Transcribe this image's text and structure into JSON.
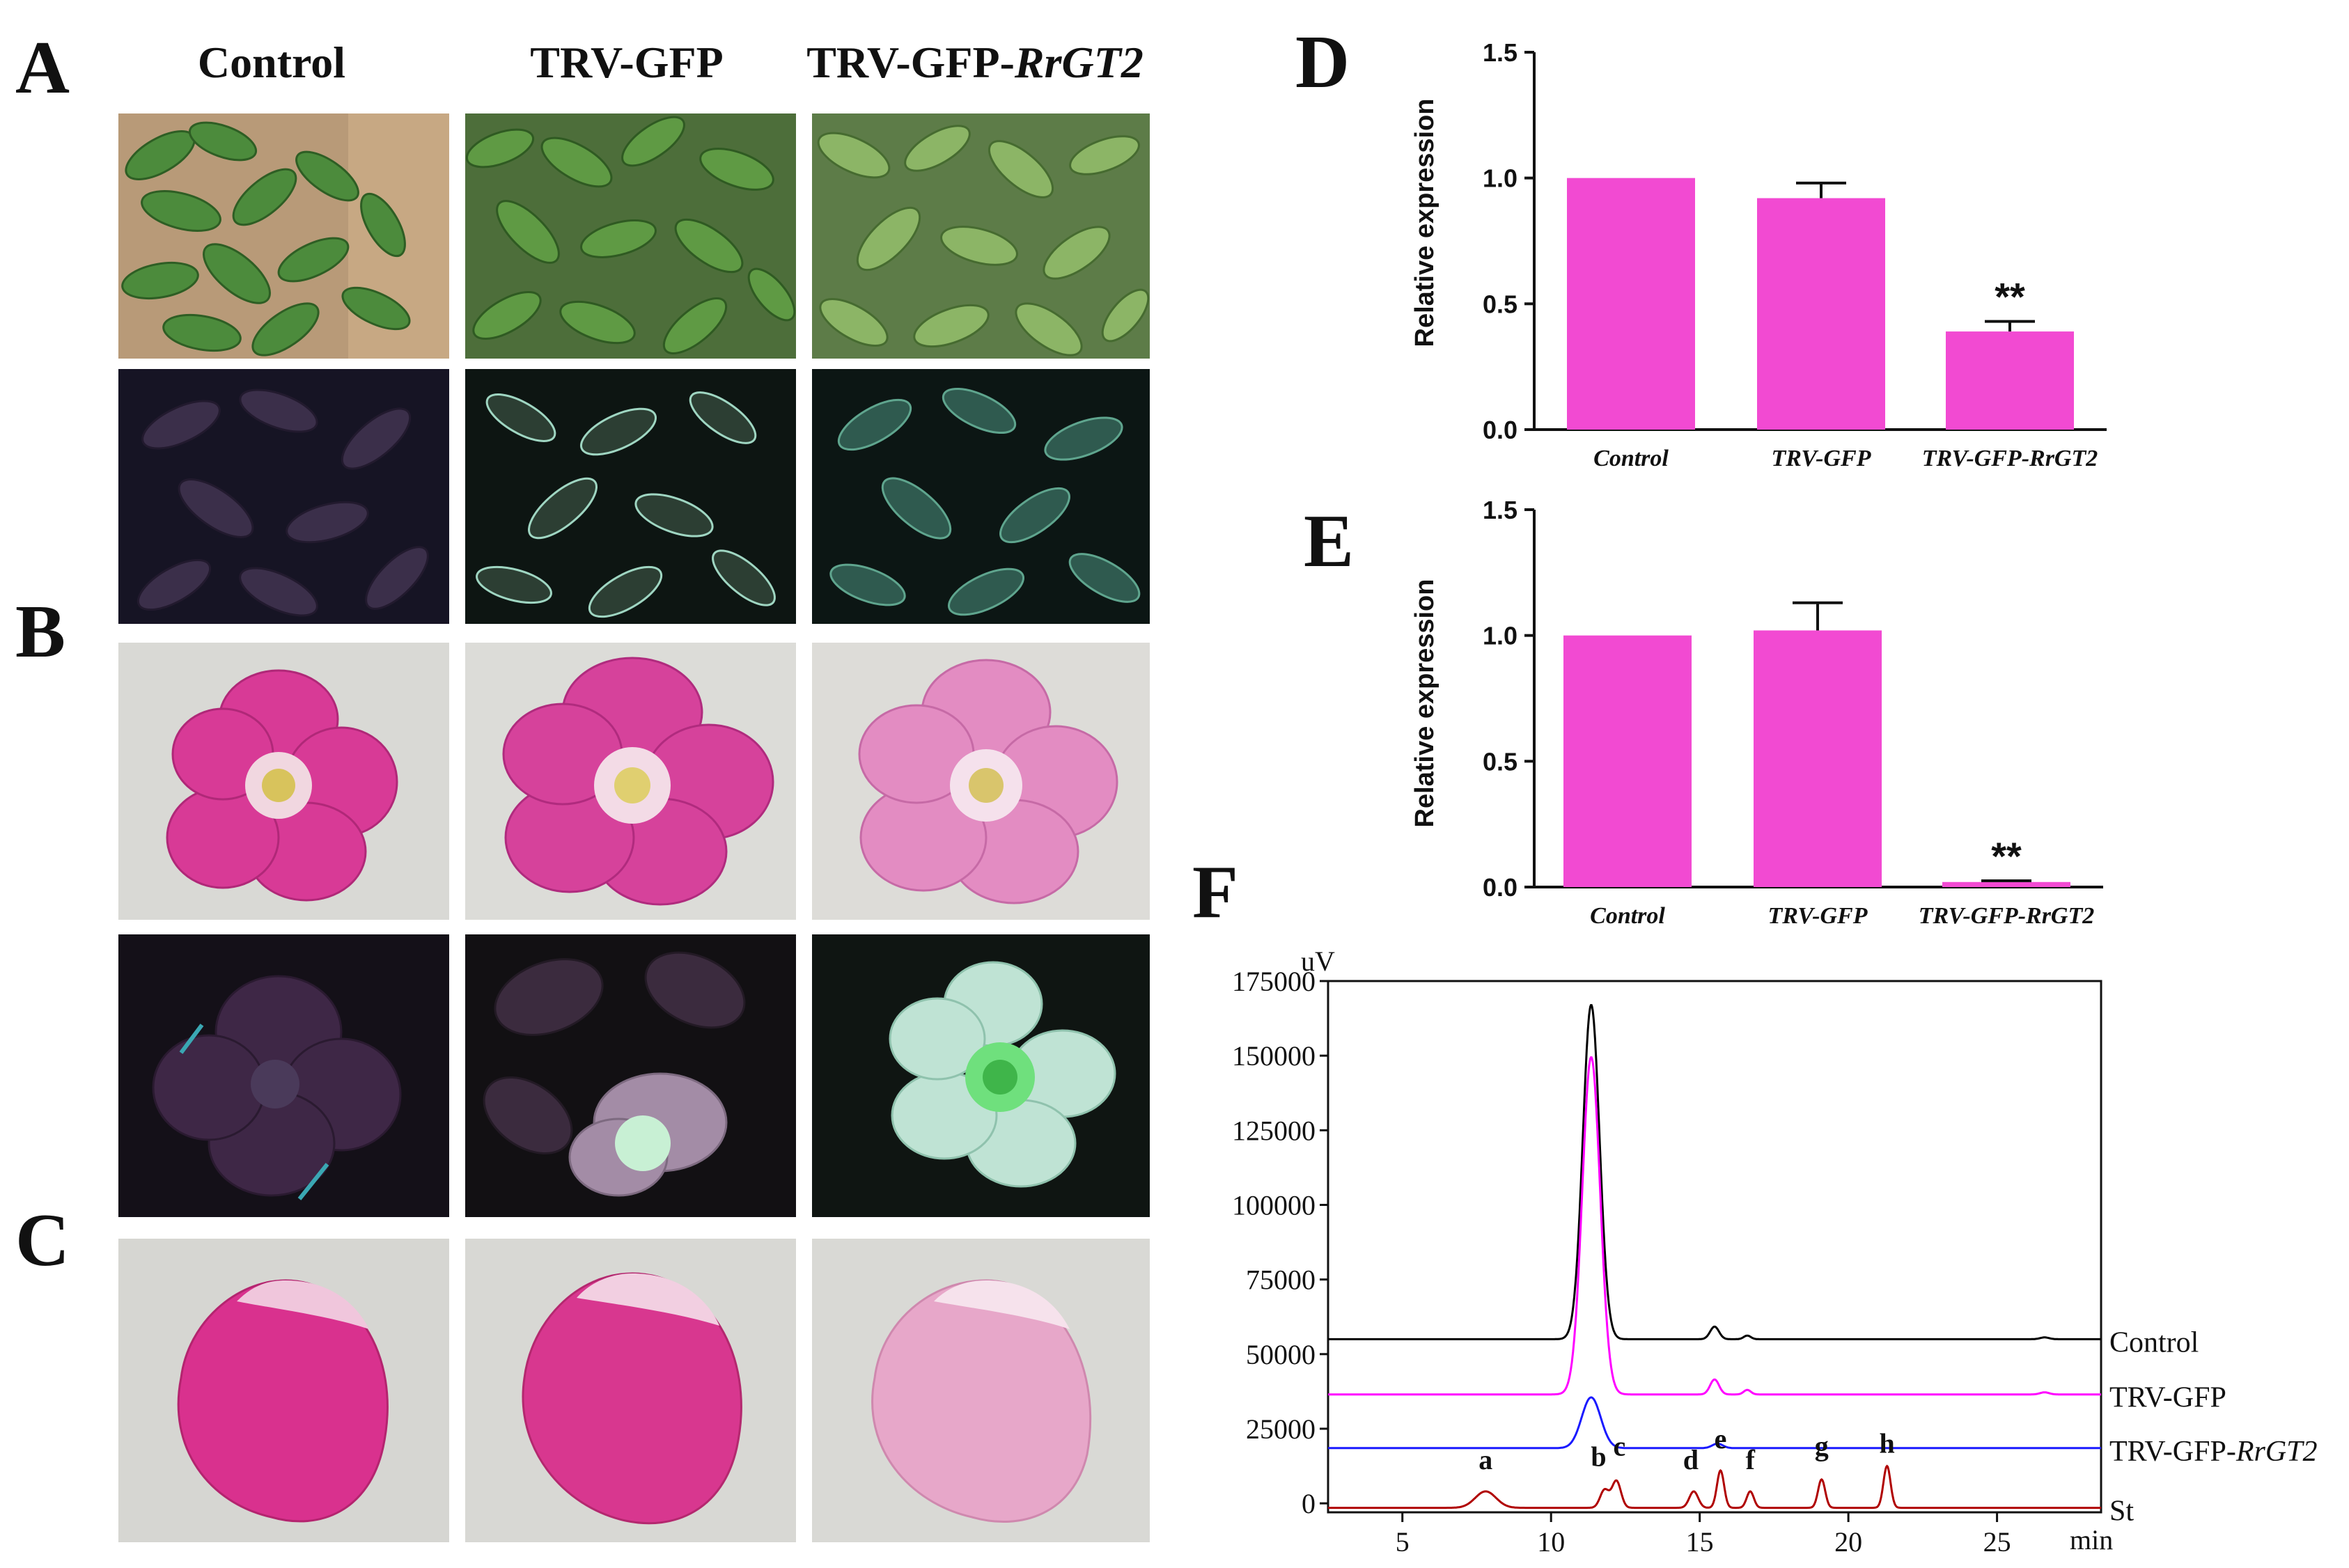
{
  "figure": {
    "panel_labels": [
      "A",
      "B",
      "C",
      "D",
      "E",
      "F"
    ],
    "column_headers": [
      {
        "text": "Control",
        "gene": ""
      },
      {
        "text": "TRV-GFP",
        "gene": ""
      },
      {
        "text": "TRV-GFP-",
        "gene": "RrGT2"
      }
    ],
    "photos": {
      "A_leaves_daylight": [
        "leaves Control",
        "leaves TRV-GFP",
        "leaves TRV-GFP-RrGT2"
      ],
      "A_leaves_uv": [
        "leaves UV Control",
        "leaves UV TRV-GFP",
        "leaves UV TRV-GFP-RrGT2"
      ],
      "B_flowers_daylight": [
        "flower Control",
        "flower TRV-GFP",
        "flower TRV-GFP-RrGT2"
      ],
      "B_flowers_uv": [
        "flower UV Control",
        "flower UV TRV-GFP",
        "flower UV TRV-GFP-RrGT2"
      ],
      "C_petals": [
        "petal Control",
        "petal TRV-GFP",
        "petal TRV-GFP-RrGT2"
      ]
    },
    "colors": {
      "bar": "#f24ad2",
      "control_trace": "#000000",
      "trv_gfp_trace": "#ff00ff",
      "trv_gfp_rrgt2_trace": "#1a1aff",
      "standard_trace": "#b00000"
    }
  },
  "chart_data": [
    {
      "panel": "D",
      "type": "bar",
      "categories": [
        "Control",
        "TRV-GFP",
        "TRV-GFP-RrGT2"
      ],
      "values": [
        1.0,
        0.92,
        0.39
      ],
      "errors": [
        0,
        0.06,
        0.04
      ],
      "significance": [
        "",
        "",
        "**"
      ],
      "ylabel": "Relative expression",
      "ylim": [
        0,
        1.5
      ],
      "yticks": [
        "0.0",
        "0.5",
        "1.0",
        "1.5"
      ]
    },
    {
      "panel": "E",
      "type": "bar",
      "categories": [
        "Control",
        "TRV-GFP",
        "TRV-GFP-RrGT2"
      ],
      "values": [
        1.0,
        1.02,
        0.02
      ],
      "errors": [
        0,
        0.11,
        0.005
      ],
      "significance": [
        "",
        "",
        "**"
      ],
      "ylabel": "Relative expression",
      "ylim": [
        0,
        1.5
      ],
      "yticks": [
        "0.0",
        "0.5",
        "1.0",
        "1.5"
      ]
    },
    {
      "panel": "F",
      "type": "line",
      "yunit": "uV",
      "xunit": "min",
      "xlim": [
        2.5,
        28.5
      ],
      "ylim": [
        -3000,
        175000
      ],
      "xticks": [
        "5",
        "10",
        "15",
        "20",
        "25"
      ],
      "yticks": [
        "0",
        "25000",
        "50000",
        "75000",
        "100000",
        "125000",
        "150000",
        "175000"
      ],
      "series": [
        {
          "name": "Control",
          "gene": "",
          "baseline": 55000,
          "peaks": [
            [
              11.35,
              112000,
              0.28
            ],
            [
              15.5,
              4200,
              0.15
            ],
            [
              16.6,
              1200,
              0.12
            ],
            [
              26.6,
              600,
              0.15
            ]
          ]
        },
        {
          "name": "TRV-GFP",
          "gene": "",
          "baseline": 36500,
          "peaks": [
            [
              11.35,
              113000,
              0.3
            ],
            [
              15.5,
              5000,
              0.15
            ],
            [
              16.6,
              1500,
              0.12
            ],
            [
              26.6,
              700,
              0.15
            ]
          ]
        },
        {
          "name": "TRV-GFP-",
          "gene": "RrGT2",
          "baseline": 18500,
          "peaks": [
            [
              11.35,
              17000,
              0.32
            ],
            [
              15.6,
              1500,
              0.18
            ]
          ]
        },
        {
          "name": "St",
          "gene": "",
          "baseline": -1500,
          "peaks": [
            [
              7.8,
              5500,
              0.35
            ],
            [
              11.8,
              6000,
              0.15
            ],
            [
              12.2,
              9000,
              0.15
            ],
            [
              14.8,
              5500,
              0.15
            ],
            [
              15.7,
              12500,
              0.12
            ],
            [
              16.7,
              5500,
              0.12
            ],
            [
              19.1,
              9500,
              0.12
            ],
            [
              21.3,
              14000,
              0.12
            ]
          ]
        }
      ],
      "peak_labels": [
        {
          "label": "a",
          "x": 7.8,
          "y": 11500
        },
        {
          "label": "b",
          "x": 11.6,
          "y": 12500
        },
        {
          "label": "c",
          "x": 12.3,
          "y": 16000
        },
        {
          "label": "d",
          "x": 14.7,
          "y": 11500
        },
        {
          "label": "e",
          "x": 15.7,
          "y": 18500
        },
        {
          "label": "f",
          "x": 16.7,
          "y": 11500
        },
        {
          "label": "g",
          "x": 19.1,
          "y": 16000
        },
        {
          "label": "h",
          "x": 21.3,
          "y": 17000
        }
      ]
    }
  ]
}
